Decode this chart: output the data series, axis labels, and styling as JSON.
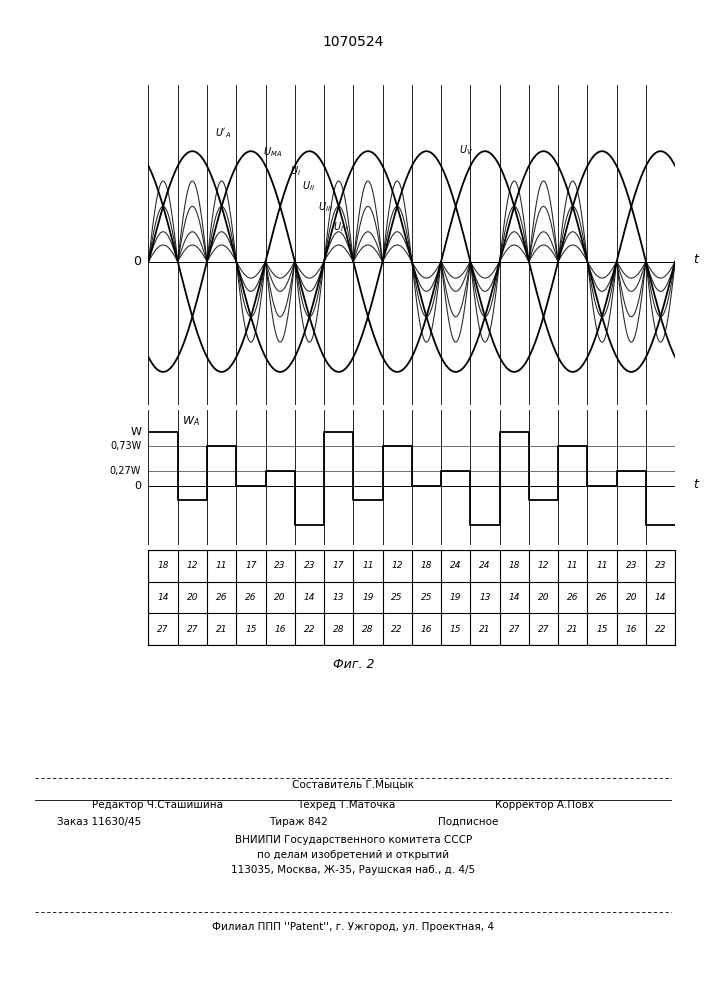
{
  "patent_number": "1070524",
  "fig_caption": "Фиг. 2",
  "table_row1": [
    "18",
    "12",
    "11",
    "17",
    "23",
    "23",
    "17",
    "11",
    "12",
    "18",
    "24",
    "24",
    "18",
    "12",
    "11",
    "11",
    "23",
    "23"
  ],
  "table_row2": [
    "14",
    "20",
    "26",
    "26",
    "20",
    "14",
    "13",
    "19",
    "25",
    "25",
    "19",
    "13",
    "14",
    "20",
    "26",
    "26",
    "20",
    "14"
  ],
  "table_row3": [
    "27",
    "27",
    "21",
    "15",
    "16",
    "22",
    "28",
    "28",
    "22",
    "16",
    "15",
    "21",
    "27",
    "27",
    "21",
    "15",
    "16",
    "22"
  ],
  "footer_composer": "Составитель Г.Мыцык",
  "footer_editor": "Редактор Ч.Сташишина",
  "footer_techred": "Техред Т.Маточка",
  "footer_corrector": "Корректор А.Повх",
  "footer_order": "Заказ 11630/45",
  "footer_tirazh": "Тираж 842",
  "footer_podp": "Подписное",
  "footer_vniip1": "ВНИИПИ Государственного комитета СССР",
  "footer_vniip2": "по делам изобретений и открытий",
  "footer_addr": "113035, Москва, Ж-35, Раушская наб., д. 4/5",
  "footer_filial": "Филиал ППП ''Patent'', г. Ужгород, ул. Проектная, 4",
  "bg_color": "#ffffff"
}
